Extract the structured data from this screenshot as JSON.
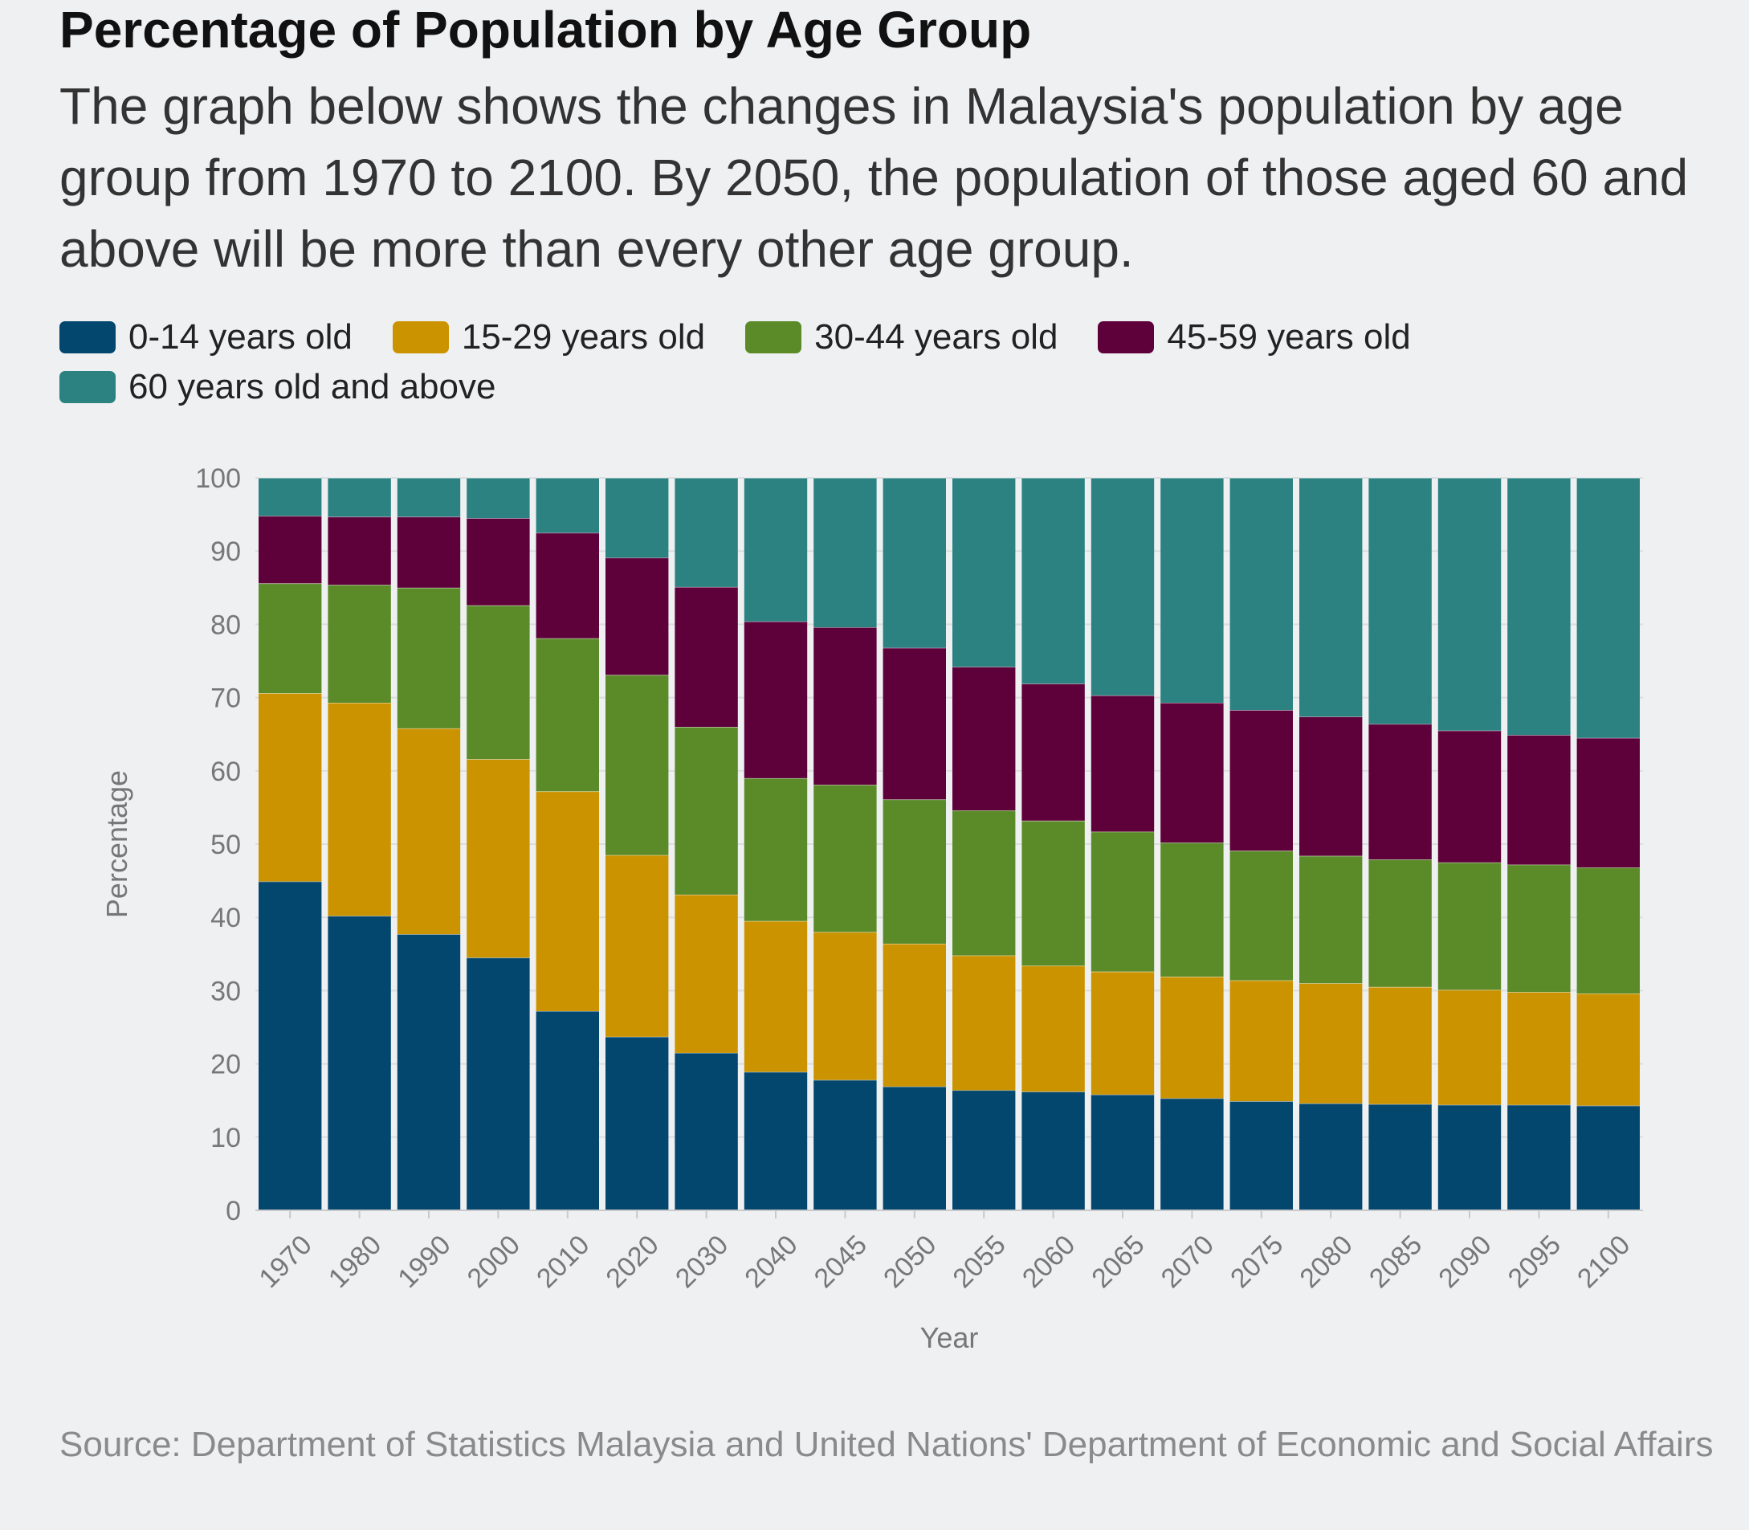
{
  "title": "Percentage of Population by Age Group",
  "subtitle": "The graph below shows the changes in Malaysia's population by age group from 1970 to 2100. By 2050, the population of those aged 60 and above will be more than every other age group.",
  "source": "Source: Department of Statistics Malaysia and United Nations' Department of Economic and Social Affairs",
  "legend": [
    {
      "label": "0-14 years old",
      "color": "#03466e"
    },
    {
      "label": "15-29 years old",
      "color": "#cc9300"
    },
    {
      "label": "30-44 years old",
      "color": "#5b8b29"
    },
    {
      "label": "45-59 years old",
      "color": "#5e0039"
    },
    {
      "label": "60 years old and above",
      "color": "#2b8281"
    }
  ],
  "chart_data": {
    "type": "bar",
    "stacked": true,
    "xlabel": "Year",
    "ylabel": "Percentage",
    "ylim": [
      0,
      100
    ],
    "yticks": [
      0,
      10,
      20,
      30,
      40,
      50,
      60,
      70,
      80,
      90,
      100
    ],
    "grid": true,
    "legend_position": "top-left",
    "categories": [
      "1970",
      "1980",
      "1990",
      "2000",
      "2010",
      "2020",
      "2030",
      "2040",
      "2045",
      "2050",
      "2055",
      "2060",
      "2065",
      "2070",
      "2075",
      "2080",
      "2085",
      "2090",
      "2095",
      "2100"
    ],
    "series": [
      {
        "name": "0-14 years old",
        "color": "#03466e",
        "values": [
          44.9,
          40.2,
          37.7,
          34.5,
          27.2,
          23.7,
          21.5,
          18.9,
          17.8,
          16.9,
          16.4,
          16.2,
          15.8,
          15.3,
          14.9,
          14.6,
          14.5,
          14.4,
          14.4,
          14.3
        ]
      },
      {
        "name": "15-29 years old",
        "color": "#cc9300",
        "values": [
          25.7,
          29.1,
          28.1,
          27.1,
          30.0,
          24.8,
          21.6,
          20.6,
          20.2,
          19.5,
          18.4,
          17.2,
          16.8,
          16.6,
          16.5,
          16.4,
          16.0,
          15.7,
          15.4,
          15.3
        ]
      },
      {
        "name": "30-44 years old",
        "color": "#5b8b29",
        "values": [
          15.0,
          16.1,
          19.2,
          21.0,
          20.9,
          24.6,
          22.9,
          19.5,
          20.1,
          19.7,
          19.8,
          19.8,
          19.1,
          18.3,
          17.7,
          17.4,
          17.4,
          17.4,
          17.4,
          17.2
        ]
      },
      {
        "name": "45-59 years old",
        "color": "#5e0039",
        "values": [
          9.2,
          9.3,
          9.7,
          11.9,
          14.4,
          16.0,
          19.1,
          21.4,
          21.5,
          20.7,
          19.6,
          18.7,
          18.6,
          19.1,
          19.2,
          19.0,
          18.5,
          18.0,
          17.7,
          17.7
        ]
      },
      {
        "name": "60 years old and above",
        "color": "#2b8281",
        "values": [
          5.2,
          5.3,
          5.3,
          5.5,
          7.5,
          10.9,
          14.9,
          19.6,
          20.4,
          23.2,
          25.8,
          28.1,
          29.7,
          30.7,
          31.7,
          32.6,
          33.6,
          34.5,
          35.1,
          35.5
        ]
      }
    ]
  }
}
